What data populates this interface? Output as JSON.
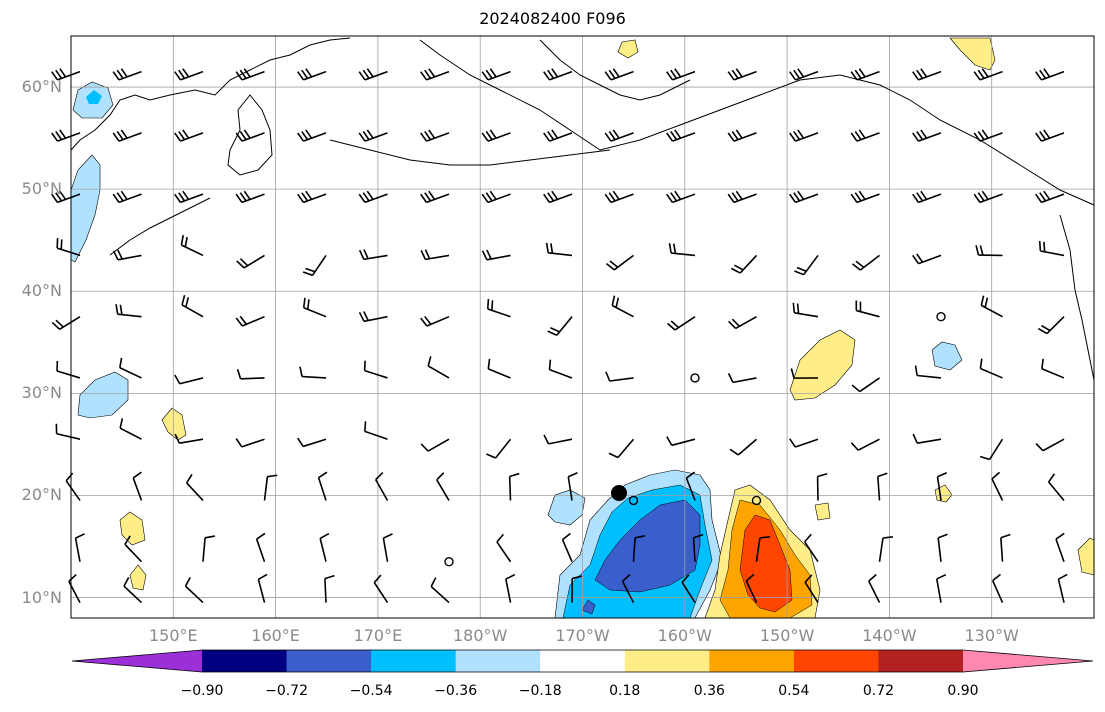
{
  "title": "2024082400 F096",
  "map": {
    "lat_labels": [
      "60°N",
      "50°N",
      "40°N",
      "30°N",
      "20°N",
      "10°N"
    ],
    "lon_labels": [
      "150°E",
      "160°E",
      "170°E",
      "180°W",
      "170°W",
      "160°W",
      "150°W",
      "140°W",
      "130°W"
    ],
    "lat_range": [
      8,
      65
    ],
    "lon_range_east": [
      140,
      240
    ],
    "grid": true,
    "projection": "PlateCarree"
  },
  "colorbar": {
    "levels": [
      "−0.90",
      "−0.72",
      "−0.54",
      "−0.36",
      "−0.18",
      "0.18",
      "0.36",
      "0.54",
      "0.72",
      "0.90"
    ],
    "colors": [
      "#9b30d9",
      "#000080",
      "#3a5fcd",
      "#00bfff",
      "#b0e2ff",
      "#ffffff",
      "#ffee88",
      "#ffa500",
      "#ff4500",
      "#b22222",
      "#ff88b0"
    ],
    "extend": "both"
  },
  "colors": {
    "frame": "#000000",
    "grid": "#a0a0a0",
    "coast": "#000000"
  }
}
